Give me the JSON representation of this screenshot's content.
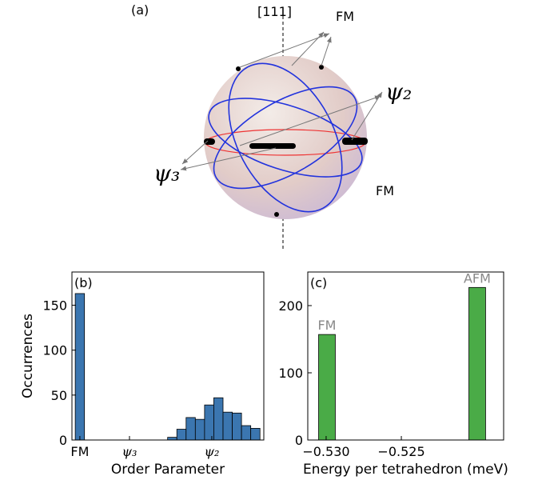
{
  "diagram": {
    "panel_label": "(a)",
    "axis_label": "[111]",
    "labels": {
      "fm_top": "FM",
      "psi2": "ψ₂",
      "psi3": "ψ₃",
      "fm_right": "FM"
    }
  },
  "chart_data": [
    {
      "type": "histogram",
      "panel_label": "(b)",
      "x_label": "Order Parameter",
      "y_label": "Occurrences",
      "color": "#3b76b0",
      "bins": [
        -0.035,
        0.035,
        0.105,
        0.175,
        0.245,
        0.315,
        0.385,
        0.455,
        0.525,
        0.595,
        0.665,
        0.735,
        0.805,
        0.875,
        0.945,
        1.015,
        1.085,
        1.155,
        1.225,
        1.295,
        1.365
      ],
      "values": [
        163,
        0,
        0,
        0,
        0,
        0,
        0,
        0,
        0,
        0,
        3,
        12,
        25,
        23,
        39,
        47,
        31,
        30,
        16,
        13
      ],
      "xlim": [
        -0.06,
        1.394
      ],
      "xticks": [
        {
          "value": 0,
          "label": "FM"
        },
        {
          "value": 0.376,
          "label": "ψ₃"
        },
        {
          "value": 1.0,
          "label": "ψ₂"
        }
      ],
      "ylim": [
        0,
        187
      ],
      "yticks": [
        0,
        50,
        100,
        150
      ]
    },
    {
      "type": "histogram",
      "panel_label": "(c)",
      "x_label": "Energy per tetrahedron (meV)",
      "color": "#4aab47",
      "bins": [
        -0.5305,
        -0.52939,
        -0.52828,
        -0.52717,
        -0.52606,
        -0.52495,
        -0.52384,
        -0.52273,
        -0.52162,
        -0.52051,
        -0.5194
      ],
      "values": [
        157,
        0,
        0,
        0,
        0,
        0,
        0,
        0,
        0,
        227
      ],
      "bar_labels": [
        "FM",
        null,
        null,
        null,
        null,
        null,
        null,
        null,
        null,
        "AFM"
      ],
      "xlim": [
        -0.53122,
        -0.5182
      ],
      "xticks": [
        {
          "value": -0.53,
          "label": "−0.530"
        },
        {
          "value": -0.525,
          "label": "−0.525"
        }
      ],
      "ylim": [
        0,
        250
      ],
      "yticks": [
        0,
        100,
        200
      ]
    }
  ]
}
